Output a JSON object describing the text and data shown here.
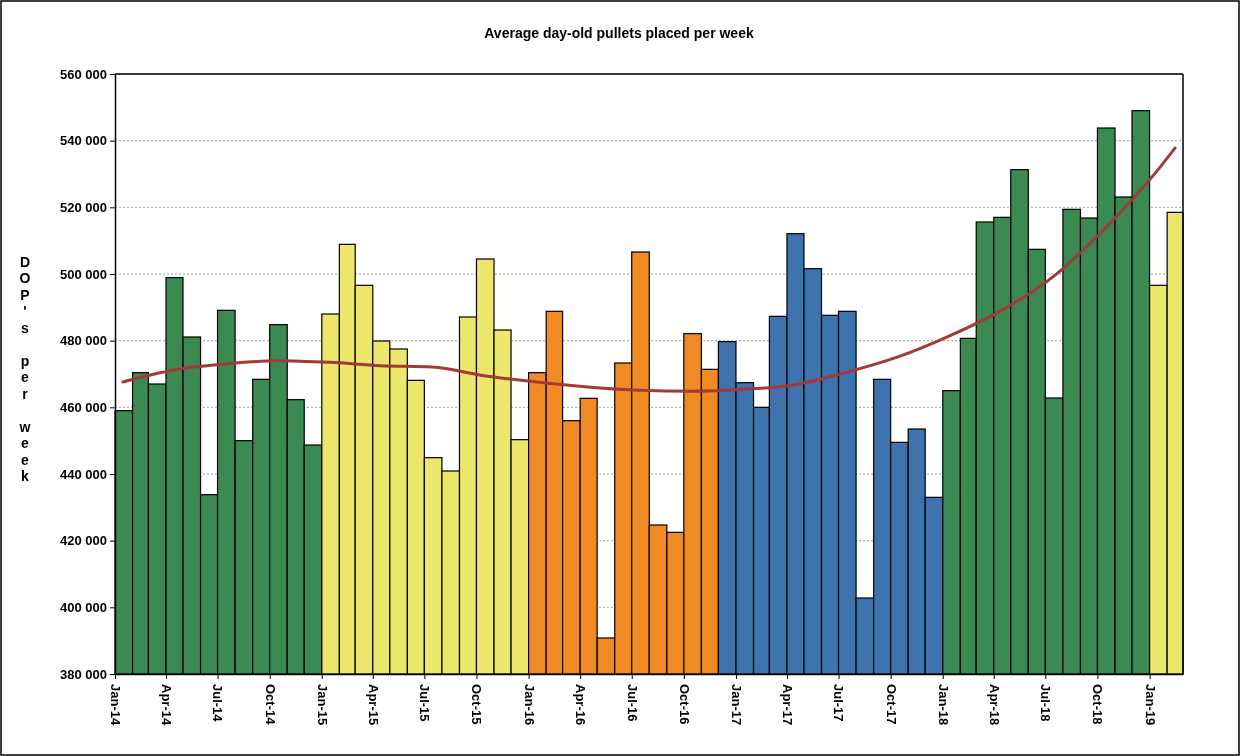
{
  "chart_data": {
    "type": "bar",
    "title": "Average day-old pullets placed per week",
    "ylabel": "DOP's per week",
    "x": [
      "2014-01-16",
      "2014-02-15",
      "2014-03-16",
      "2014-04-16",
      "2014-05-16",
      "2014-06-16",
      "2014-07-16",
      "2014-08-16",
      "2014-09-16",
      "2014-10-16",
      "2014-11-16",
      "2014-12-16",
      "2015-01-16",
      "2015-02-15",
      "2015-03-16",
      "2015-04-16",
      "2015-05-16",
      "2015-06-16",
      "2015-07-16",
      "2015-08-16",
      "2015-09-16",
      "2015-10-16",
      "2015-11-16",
      "2015-12-16",
      "2016-01-16",
      "2016-02-15",
      "2016-03-16",
      "2016-04-16",
      "2016-05-16",
      "2016-06-16",
      "2016-07-16",
      "2016-08-16",
      "2016-09-16",
      "2016-10-16",
      "2016-11-16",
      "2016-12-16",
      "2017-01-16",
      "2017-02-15",
      "2017-03-16",
      "2017-04-16",
      "2017-05-16",
      "2017-06-16",
      "2017-07-16",
      "2017-08-16",
      "2017-09-16",
      "2017-10-16",
      "2017-11-16",
      "2017-12-16",
      "2018-01-16",
      "2018-02-15",
      "2018-03-16",
      "2018-04-16",
      "2018-05-16",
      "2018-06-16",
      "2018-07-16",
      "2018-08-16",
      "2018-09-16",
      "2018-10-16",
      "2018-11-16",
      "2018-12-16",
      "2019-01-16",
      "2019-02-15"
    ],
    "xlim": [
      "2014-01",
      "2019-03"
    ],
    "xticks": [
      {
        "value": "2014-01",
        "label": "Jan-14"
      },
      {
        "value": "2014-04",
        "label": "Apr-14"
      },
      {
        "value": "2014-07",
        "label": "Jul-14"
      },
      {
        "value": "2014-10",
        "label": "Oct-14"
      },
      {
        "value": "2015-01",
        "label": "Jan-15"
      },
      {
        "value": "2015-04",
        "label": "Apr-15"
      },
      {
        "value": "2015-07",
        "label": "Jul-15"
      },
      {
        "value": "2015-10",
        "label": "Oct-15"
      },
      {
        "value": "2016-01",
        "label": "Jan-16"
      },
      {
        "value": "2016-04",
        "label": "Apr-16"
      },
      {
        "value": "2016-07",
        "label": "Jul-16"
      },
      {
        "value": "2016-10",
        "label": "Oct-16"
      },
      {
        "value": "2017-01",
        "label": "Jan-17"
      },
      {
        "value": "2017-04",
        "label": "Apr-17"
      },
      {
        "value": "2017-07",
        "label": "Jul-17"
      },
      {
        "value": "2017-10",
        "label": "Oct-17"
      },
      {
        "value": "2018-01",
        "label": "Jan-18"
      },
      {
        "value": "2018-04",
        "label": "Apr-18"
      },
      {
        "value": "2018-07",
        "label": "Jul-18"
      },
      {
        "value": "2018-10",
        "label": "Oct-18"
      },
      {
        "value": "2019-01",
        "label": "Jan-19"
      }
    ],
    "ylim": [
      380000,
      560000
    ],
    "yticks": [
      {
        "value": 380000,
        "label": "380 000"
      },
      {
        "value": 400000,
        "label": "400 000"
      },
      {
        "value": 420000,
        "label": "420 000"
      },
      {
        "value": 440000,
        "label": "440 000"
      },
      {
        "value": 460000,
        "label": "460 000"
      },
      {
        "value": 480000,
        "label": "480 000"
      },
      {
        "value": 500000,
        "label": "500 000"
      },
      {
        "value": 520000,
        "label": "520 000"
      },
      {
        "value": 540000,
        "label": "540 000"
      },
      {
        "value": 560000,
        "label": "560 000"
      }
    ],
    "grid": "y",
    "series": [
      {
        "values": [
          459000,
          470400,
          467000,
          498900,
          481100,
          433800,
          489100,
          450000,
          468400,
          484800,
          462300,
          448700,
          488000,
          508900,
          496600,
          479900,
          477500,
          468100,
          444900,
          440900,
          487100,
          504500,
          483200,
          450300,
          470400,
          488800,
          456000,
          462700,
          390800,
          473300,
          506600,
          424700,
          422500,
          482100,
          471400,
          479700,
          467400,
          460000,
          487300,
          512100,
          501600,
          487600,
          488800,
          402800,
          468400,
          449500,
          453500,
          433000,
          465000,
          480700,
          515600,
          517000,
          531300,
          507400,
          462800,
          519400,
          516800,
          543800,
          523100,
          549000,
          496600,
          518500
        ],
        "colors": [
          "#3a8a52",
          "#3a8a52",
          "#3a8a52",
          "#3a8a52",
          "#3a8a52",
          "#3a8a52",
          "#3a8a52",
          "#3a8a52",
          "#3a8a52",
          "#3a8a52",
          "#3a8a52",
          "#3a8a52",
          "#ece66a",
          "#ece66a",
          "#ece66a",
          "#ece66a",
          "#ece66a",
          "#ece66a",
          "#ece66a",
          "#ece66a",
          "#ece66a",
          "#ece66a",
          "#ece66a",
          "#ece66a",
          "#f08a24",
          "#f08a24",
          "#f08a24",
          "#f08a24",
          "#f08a24",
          "#f08a24",
          "#f08a24",
          "#f08a24",
          "#f08a24",
          "#f08a24",
          "#f08a24",
          "#3f73ad",
          "#3f73ad",
          "#3f73ad",
          "#3f73ad",
          "#3f73ad",
          "#3f73ad",
          "#3f73ad",
          "#3f73ad",
          "#3f73ad",
          "#3f73ad",
          "#3f73ad",
          "#3f73ad",
          "#3f73ad",
          "#3a8a52",
          "#3a8a52",
          "#3a8a52",
          "#3a8a52",
          "#3a8a52",
          "#3a8a52",
          "#3a8a52",
          "#3a8a52",
          "#3a8a52",
          "#3a8a52",
          "#3a8a52",
          "#3a8a52",
          "#ece66a",
          "#ece66a"
        ]
      },
      {
        "type": "line",
        "color": "#a33a3a",
        "x": [
          "2014-01-15",
          "2014-04-15",
          "2014-07-15",
          "2014-10-15",
          "2015-01-15",
          "2015-04-15",
          "2015-07-15",
          "2015-10-15",
          "2016-01-15",
          "2016-04-15",
          "2016-07-15",
          "2016-10-15",
          "2017-01-15",
          "2017-04-15",
          "2017-07-15",
          "2017-10-15",
          "2018-01-15",
          "2018-04-15",
          "2018-07-15",
          "2018-10-15",
          "2019-01-15",
          "2019-02-15"
        ],
        "values": [
          467600,
          471200,
          473000,
          474000,
          473500,
          472500,
          472100,
          469500,
          467600,
          466100,
          465100,
          464800,
          465400,
          466800,
          470500,
          475200,
          481600,
          489100,
          499200,
          513800,
          531100,
          537800
        ]
      }
    ]
  }
}
